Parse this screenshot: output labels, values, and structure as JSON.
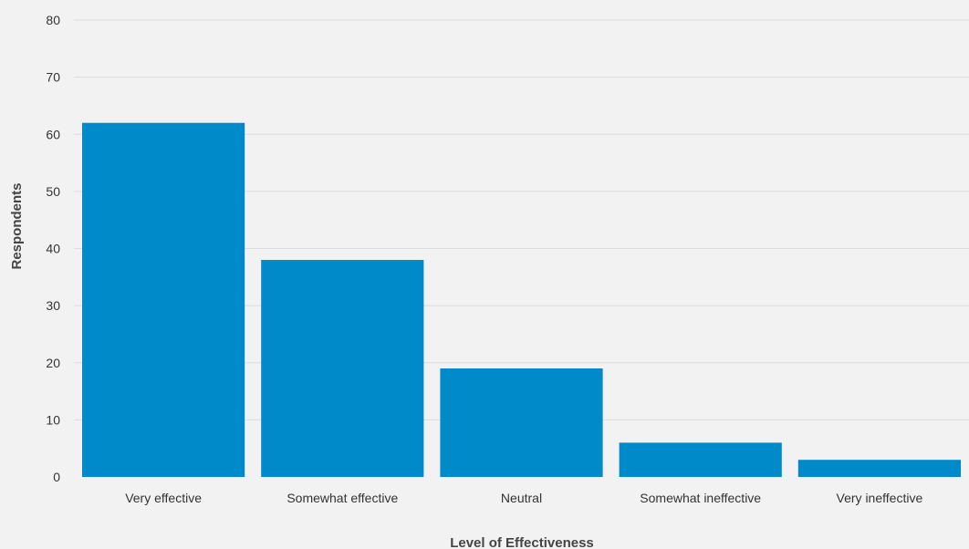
{
  "chart_data": {
    "type": "bar",
    "categories": [
      "Very effective",
      "Somewhat effective",
      "Neutral",
      "Somewhat ineffective",
      "Very ineffective"
    ],
    "values": [
      62,
      38,
      19,
      6,
      3
    ],
    "xlabel": "Level of Effectiveness",
    "ylabel": "Respondents",
    "ylim": [
      0,
      80
    ],
    "yticks": [
      0,
      10,
      20,
      30,
      40,
      50,
      60,
      70,
      80
    ],
    "grid": true,
    "bar_color": "#008ac9",
    "background_color": "#f2f2f2"
  }
}
